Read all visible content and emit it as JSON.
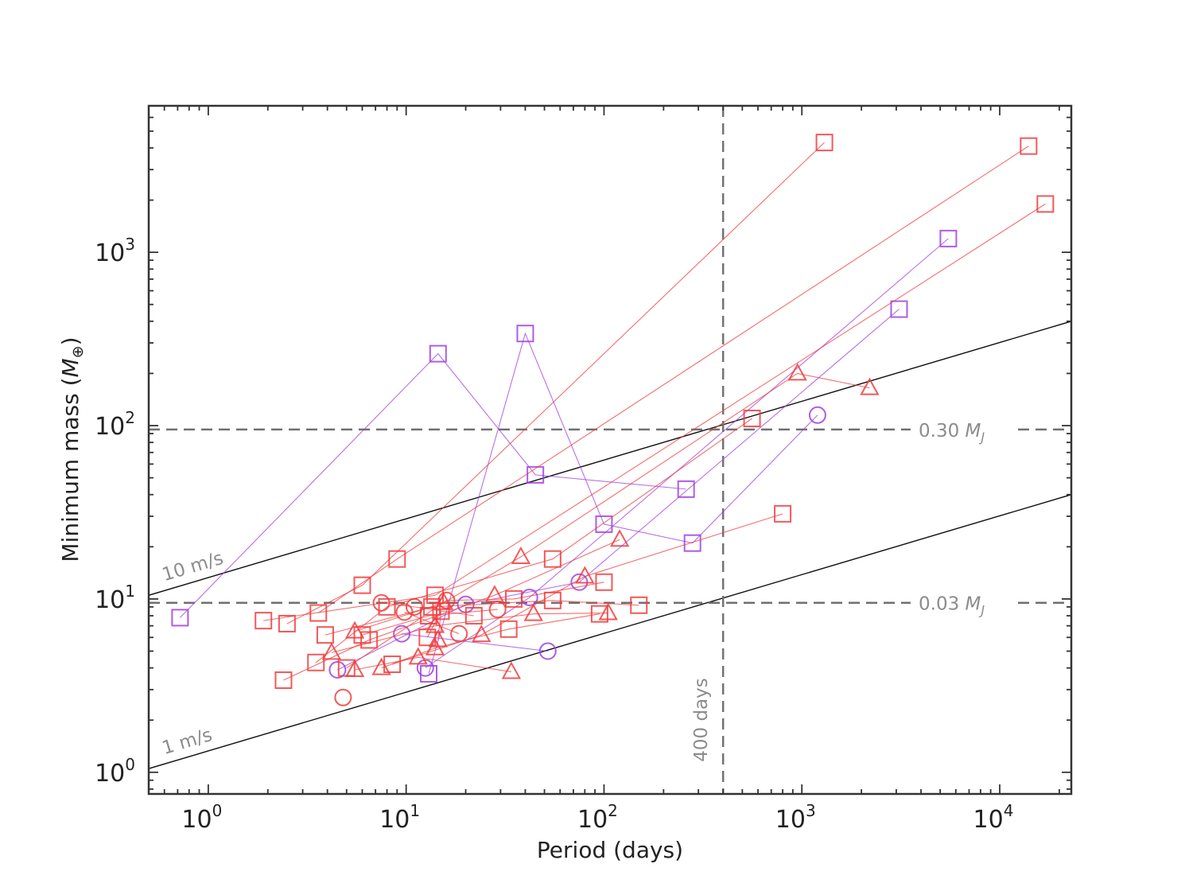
{
  "chart_data": {
    "type": "scatter",
    "title": "",
    "xlabel": "Period (days)",
    "ylabel": "Minimum mass (M⊕)",
    "xscale": "log",
    "yscale": "log",
    "xlim": [
      0.5,
      23000
    ],
    "ylim": [
      0.75,
      7000
    ],
    "x_ticks": [
      {
        "value": 1,
        "label": "10",
        "exp": "0"
      },
      {
        "value": 10,
        "label": "10",
        "exp": "1"
      },
      {
        "value": 100,
        "label": "10",
        "exp": "2"
      },
      {
        "value": 1000,
        "label": "10",
        "exp": "3"
      },
      {
        "value": 10000,
        "label": "10",
        "exp": "4"
      }
    ],
    "y_ticks": [
      {
        "value": 1,
        "label": "10",
        "exp": "0"
      },
      {
        "value": 10,
        "label": "10",
        "exp": "1"
      },
      {
        "value": 100,
        "label": "10",
        "exp": "2"
      },
      {
        "value": 1000,
        "label": "10",
        "exp": "3"
      }
    ],
    "colors": {
      "red": "#f03c3c",
      "purple": "#a040e0",
      "ref": "#111111",
      "dash": "#707070",
      "annot": "#8c8c8c"
    },
    "reference_lines": [
      {
        "name": "10-ms-line",
        "label": "10 m/s",
        "x": [
          0.5,
          23000
        ],
        "y": [
          10.5,
          400
        ]
      },
      {
        "name": "1-ms-line",
        "label": "1 m/s",
        "x": [
          0.5,
          23000
        ],
        "y": [
          1.05,
          40
        ]
      }
    ],
    "hlines": [
      {
        "name": "saturn-mass-line",
        "y": 95,
        "label": "0.30 M",
        "sub": "J"
      },
      {
        "name": "neptune-mass-line",
        "y": 9.5,
        "label": "0.03 M",
        "sub": "J"
      }
    ],
    "vlines": [
      {
        "name": "400-day-line",
        "x": 400,
        "label": "400 days"
      }
    ],
    "systems": [
      {
        "color": "purple",
        "points": [
          {
            "x": 0.72,
            "y": 7.8,
            "m": "s"
          },
          {
            "x": 14.5,
            "y": 260,
            "m": "s"
          },
          {
            "x": 45,
            "y": 52,
            "m": "s"
          },
          {
            "x": 260,
            "y": 43,
            "m": "s"
          }
        ]
      },
      {
        "color": "purple",
        "points": [
          {
            "x": 13,
            "y": 3.7,
            "m": "s"
          },
          {
            "x": 40,
            "y": 340,
            "m": "s"
          },
          {
            "x": 100,
            "y": 27,
            "m": "s"
          },
          {
            "x": 280,
            "y": 21,
            "m": "s"
          },
          {
            "x": 1200,
            "y": 115,
            "m": "o"
          }
        ]
      },
      {
        "color": "purple",
        "points": [
          {
            "x": 4.5,
            "y": 3.9,
            "m": "o"
          },
          {
            "x": 20,
            "y": 9.3,
            "m": "o"
          },
          {
            "x": 75,
            "y": 12.5,
            "m": "o"
          },
          {
            "x": 3100,
            "y": 470,
            "m": "s"
          }
        ]
      },
      {
        "color": "purple",
        "points": [
          {
            "x": 9.5,
            "y": 6.3,
            "m": "o"
          },
          {
            "x": 52,
            "y": 5,
            "m": "o"
          }
        ]
      },
      {
        "color": "purple",
        "points": [
          {
            "x": 12.5,
            "y": 4,
            "m": "o"
          },
          {
            "x": 42,
            "y": 10.2,
            "m": "o"
          },
          {
            "x": 5500,
            "y": 1200,
            "m": "s"
          }
        ]
      },
      {
        "color": "red",
        "points": [
          {
            "x": 2.5,
            "y": 7.2,
            "m": "s"
          },
          {
            "x": 6,
            "y": 12,
            "m": "s"
          },
          {
            "x": 1300,
            "y": 4300,
            "m": "s"
          }
        ]
      },
      {
        "color": "red",
        "points": [
          {
            "x": 3.6,
            "y": 8.3,
            "m": "s"
          },
          {
            "x": 9,
            "y": 17,
            "m": "s"
          },
          {
            "x": 14000,
            "y": 4100,
            "m": "s"
          }
        ]
      },
      {
        "color": "red",
        "points": [
          {
            "x": 1.9,
            "y": 7.5,
            "m": "s"
          },
          {
            "x": 14,
            "y": 10.5,
            "m": "s"
          },
          {
            "x": 17000,
            "y": 1900,
            "m": "s"
          }
        ]
      },
      {
        "color": "red",
        "points": [
          {
            "x": 3.5,
            "y": 4.3,
            "m": "s"
          },
          {
            "x": 8,
            "y": 9,
            "m": "s"
          },
          {
            "x": 55,
            "y": 17,
            "m": "s"
          },
          {
            "x": 560,
            "y": 110,
            "m": "s"
          }
        ]
      },
      {
        "color": "red",
        "points": [
          {
            "x": 5.5,
            "y": 6.5,
            "m": "t"
          },
          {
            "x": 15.5,
            "y": 9.5,
            "m": "t"
          },
          {
            "x": 38,
            "y": 17.5,
            "m": "t"
          },
          {
            "x": 950,
            "y": 200,
            "m": "t"
          },
          {
            "x": 2200,
            "y": 165,
            "m": "t"
          }
        ]
      },
      {
        "color": "red",
        "points": [
          {
            "x": 2.4,
            "y": 3.4,
            "m": "s"
          },
          {
            "x": 6.5,
            "y": 5.8,
            "m": "s"
          },
          {
            "x": 28,
            "y": 10.5,
            "m": "t"
          },
          {
            "x": 120,
            "y": 22,
            "m": "t"
          }
        ]
      },
      {
        "color": "red",
        "points": [
          {
            "x": 3.9,
            "y": 6.2,
            "m": "s"
          },
          {
            "x": 13.5,
            "y": 9,
            "m": "s"
          },
          {
            "x": 55,
            "y": 9.8,
            "m": "s"
          },
          {
            "x": 150,
            "y": 9.2,
            "m": "s"
          }
        ]
      },
      {
        "color": "red",
        "points": [
          {
            "x": 4.2,
            "y": 4.9,
            "m": "t"
          },
          {
            "x": 14,
            "y": 7,
            "m": "t"
          },
          {
            "x": 44,
            "y": 8.2,
            "m": "t"
          },
          {
            "x": 105,
            "y": 8.3,
            "m": "t"
          }
        ]
      },
      {
        "color": "red",
        "points": [
          {
            "x": 5,
            "y": 4,
            "m": "s"
          },
          {
            "x": 16,
            "y": 9.8,
            "m": "o"
          },
          {
            "x": 35,
            "y": 10,
            "m": "s"
          },
          {
            "x": 100,
            "y": 12.5,
            "m": "s"
          }
        ]
      },
      {
        "color": "red",
        "points": [
          {
            "x": 5.5,
            "y": 3.9,
            "m": "t"
          },
          {
            "x": 11.5,
            "y": 4.6,
            "m": "t"
          },
          {
            "x": 34,
            "y": 3.8,
            "m": "t"
          }
        ]
      },
      {
        "color": "red",
        "points": [
          {
            "x": 7.5,
            "y": 4,
            "m": "t"
          },
          {
            "x": 14,
            "y": 5.2,
            "m": "t"
          },
          {
            "x": 33,
            "y": 6.7,
            "m": "s"
          },
          {
            "x": 95,
            "y": 8.2,
            "m": "s"
          }
        ]
      },
      {
        "color": "red",
        "points": [
          {
            "x": 8.5,
            "y": 4.2,
            "m": "s"
          },
          {
            "x": 24,
            "y": 6.2,
            "m": "t"
          },
          {
            "x": 80,
            "y": 13.5,
            "m": "t"
          },
          {
            "x": 800,
            "y": 31,
            "m": "s"
          }
        ]
      },
      {
        "color": "red",
        "points": [
          {
            "x": 6,
            "y": 6.2,
            "m": "s"
          },
          {
            "x": 13,
            "y": 8,
            "m": "s"
          },
          {
            "x": 29,
            "y": 8.7,
            "m": "o"
          }
        ]
      },
      {
        "color": "red",
        "points": [
          {
            "x": 7.5,
            "y": 9.5,
            "m": "o"
          },
          {
            "x": 11,
            "y": 9,
            "m": "o"
          },
          {
            "x": 22,
            "y": 8,
            "m": "s"
          }
        ]
      },
      {
        "color": "red",
        "points": [
          {
            "x": 9.8,
            "y": 8.4,
            "m": "o"
          },
          {
            "x": 18.5,
            "y": 6.3,
            "m": "o"
          }
        ]
      },
      {
        "color": "red",
        "points": [
          {
            "x": 12.8,
            "y": 6,
            "m": "s"
          },
          {
            "x": 15,
            "y": 8.5,
            "m": "s"
          },
          {
            "x": 14.5,
            "y": 5.8,
            "m": "t"
          }
        ]
      },
      {
        "color": "red",
        "points": [
          {
            "x": 4.8,
            "y": 2.7,
            "m": "o"
          }
        ]
      }
    ]
  }
}
